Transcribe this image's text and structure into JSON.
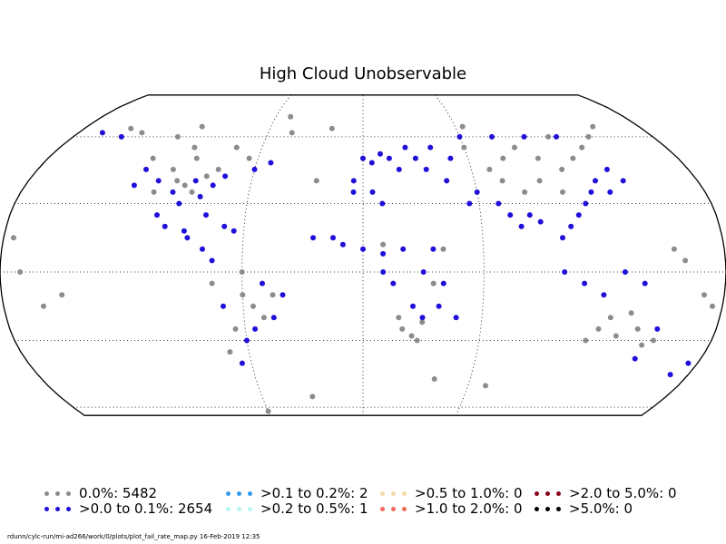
{
  "title": "High Cloud Unobservable",
  "footer": "rdunn/cylc-run/mi-ad266/work/0/plots/plot_fail_rate_map.py   16-Feb-2019 12:35",
  "colors": {
    "outline": "#000000",
    "gridline": "#000000",
    "zero": "#8c8c8c",
    "gt0_0.1": "#1f0fd9",
    "gt0.1_0.2": "#3399ee",
    "gt0.2_0.5": "#b7f5f5",
    "gt0.5_1.0": "#f5d9a8",
    "gt1.0_2.0": "#f26a5a",
    "gt2.0_5.0": "#8b001a",
    "gt5.0": "#000000"
  },
  "legend": [
    {
      "label": "0.0%: 5482",
      "color_key": "zero"
    },
    {
      "label": ">0.0 to 0.1%: 2654",
      "color_key": "gt0_0.1"
    },
    {
      "label": ">0.1 to 0.2%: 2",
      "color_key": "gt0.1_0.2"
    },
    {
      "label": ">0.2 to 0.5%: 1",
      "color_key": "gt0.2_0.5"
    },
    {
      "label": ">0.5 to 1.0%: 0",
      "color_key": "gt0.5_1.0"
    },
    {
      "label": ">1.0 to 2.0%: 0",
      "color_key": "gt1.0_2.0"
    },
    {
      "label": ">2.0 to 5.0%: 0",
      "color_key": "gt2.0_5.0"
    },
    {
      "label": ">5.0%: 0",
      "color_key": "gt5.0"
    }
  ],
  "map": {
    "projection": "Robinson",
    "graticule": "dotted",
    "graticule_lat_deg": [
      -60,
      -30,
      0,
      30,
      60
    ],
    "graticule_lon_deg": [
      -60,
      0,
      60
    ],
    "stations": {
      "zero_examples": [
        [
          -100,
          40
        ],
        [
          -95,
          38
        ],
        [
          -90,
          35
        ],
        [
          -105,
          45
        ],
        [
          -85,
          42
        ],
        [
          -110,
          35
        ],
        [
          -80,
          45
        ],
        [
          -120,
          50
        ],
        [
          -100,
          55
        ],
        [
          -95,
          50
        ],
        [
          -115,
          60
        ],
        [
          -105,
          65
        ],
        [
          -140,
          62
        ],
        [
          -150,
          64
        ],
        [
          -75,
          55
        ],
        [
          -65,
          50
        ],
        [
          -60,
          -10
        ],
        [
          -55,
          -15
        ],
        [
          -50,
          -20
        ],
        [
          -65,
          -25
        ],
        [
          -70,
          -35
        ],
        [
          -45,
          -10
        ],
        [
          -60,
          0
        ],
        [
          -75,
          -5
        ],
        [
          20,
          -25
        ],
        [
          25,
          -28
        ],
        [
          30,
          -22
        ],
        [
          28,
          -30
        ],
        [
          18,
          -20
        ],
        [
          35,
          -5
        ],
        [
          40,
          10
        ],
        [
          10,
          12
        ],
        [
          120,
          -25
        ],
        [
          130,
          -28
        ],
        [
          140,
          -25
        ],
        [
          145,
          -32
        ],
        [
          150,
          -30
        ],
        [
          125,
          -20
        ],
        [
          135,
          -18
        ],
        [
          115,
          -30
        ],
        [
          100,
          50
        ],
        [
          110,
          45
        ],
        [
          95,
          40
        ],
        [
          90,
          55
        ],
        [
          120,
          50
        ],
        [
          80,
          50
        ],
        [
          70,
          45
        ],
        [
          60,
          55
        ],
        [
          105,
          35
        ],
        [
          85,
          35
        ],
        [
          75,
          40
        ],
        [
          115,
          60
        ],
        [
          130,
          55
        ],
        [
          140,
          60
        ],
        [
          150,
          65
        ],
        [
          65,
          65
        ],
        [
          -170,
          0
        ],
        [
          -160,
          -15
        ],
        [
          -150,
          -10
        ],
        [
          170,
          -10
        ],
        [
          175,
          -15
        ],
        [
          160,
          5
        ],
        [
          155,
          10
        ],
        [
          -175,
          15
        ],
        [
          -30,
          -55
        ],
        [
          -60,
          -62
        ],
        [
          40,
          -47
        ],
        [
          70,
          -50
        ],
        [
          -20,
          64
        ],
        [
          -45,
          62
        ],
        [
          -50,
          70
        ],
        [
          -25,
          40
        ]
      ],
      "gt0_0.1_examples": [
        [
          -100,
          35
        ],
        [
          -90,
          40
        ],
        [
          -80,
          38
        ],
        [
          -95,
          30
        ],
        [
          -85,
          33
        ],
        [
          -75,
          42
        ],
        [
          -110,
          40
        ],
        [
          -120,
          45
        ],
        [
          -100,
          20
        ],
        [
          -90,
          18
        ],
        [
          -80,
          10
        ],
        [
          -75,
          5
        ],
        [
          -70,
          -15
        ],
        [
          -60,
          -30
        ],
        [
          -55,
          -25
        ],
        [
          -65,
          -40
        ],
        [
          -50,
          -5
        ],
        [
          -40,
          -10
        ],
        [
          -45,
          -20
        ],
        [
          -70,
          20
        ],
        [
          -65,
          18
        ],
        [
          -88,
          15
        ],
        [
          -105,
          25
        ],
        [
          -122,
          38
        ],
        [
          0,
          50
        ],
        [
          5,
          48
        ],
        [
          10,
          52
        ],
        [
          15,
          50
        ],
        [
          20,
          45
        ],
        [
          -5,
          40
        ],
        [
          25,
          55
        ],
        [
          30,
          50
        ],
        [
          35,
          45
        ],
        [
          40,
          55
        ],
        [
          50,
          50
        ],
        [
          45,
          40
        ],
        [
          55,
          30
        ],
        [
          60,
          35
        ],
        [
          70,
          30
        ],
        [
          75,
          25
        ],
        [
          80,
          20
        ],
        [
          85,
          25
        ],
        [
          90,
          22
        ],
        [
          100,
          15
        ],
        [
          105,
          20
        ],
        [
          110,
          25
        ],
        [
          115,
          30
        ],
        [
          120,
          35
        ],
        [
          125,
          40
        ],
        [
          130,
          35
        ],
        [
          135,
          45
        ],
        [
          140,
          40
        ],
        [
          60,
          60
        ],
        [
          80,
          60
        ],
        [
          100,
          60
        ],
        [
          120,
          60
        ],
        [
          -5,
          35
        ],
        [
          5,
          35
        ],
        [
          10,
          30
        ],
        [
          -10,
          12
        ],
        [
          -15,
          15
        ],
        [
          0,
          10
        ],
        [
          10,
          8
        ],
        [
          20,
          10
        ],
        [
          30,
          0
        ],
        [
          35,
          10
        ],
        [
          40,
          -5
        ],
        [
          38,
          -15
        ],
        [
          30,
          -20
        ],
        [
          25,
          -15
        ],
        [
          15,
          -5
        ],
        [
          10,
          0
        ],
        [
          47,
          -20
        ],
        [
          100,
          0
        ],
        [
          110,
          -5
        ],
        [
          120,
          -10
        ],
        [
          130,
          0
        ],
        [
          140,
          -5
        ],
        [
          150,
          -25
        ],
        [
          145,
          -38
        ],
        [
          175,
          -40
        ],
        [
          170,
          -45
        ],
        [
          -150,
          60
        ],
        [
          -165,
          62
        ],
        [
          -60,
          45
        ],
        [
          -52,
          48
        ],
        [
          -80,
          25
        ],
        [
          -25,
          15
        ]
      ]
    }
  }
}
